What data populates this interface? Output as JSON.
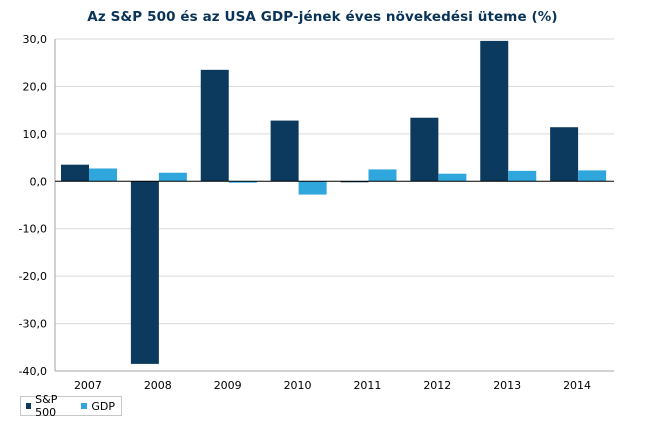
{
  "chart_data": {
    "type": "bar",
    "title": "Az S&P 500 és az USA GDP-jének éves növekedési üteme (%)",
    "xlabel": "",
    "ylabel": "",
    "categories": [
      "2007",
      "2008",
      "2009",
      "2010",
      "2011",
      "2012",
      "2013",
      "2014"
    ],
    "series": [
      {
        "name": "S&P 500",
        "color": "#0b3a5e",
        "values": [
          3.5,
          -38.5,
          23.5,
          12.8,
          -0.2,
          13.4,
          29.6,
          11.4
        ]
      },
      {
        "name": "GDP",
        "color": "#2fa6dc",
        "values": [
          2.7,
          1.8,
          -0.3,
          -2.8,
          2.5,
          1.6,
          2.2,
          2.3
        ]
      }
    ],
    "ylim": [
      -40,
      30
    ],
    "yticks": [
      "30,0",
      "20,0",
      "10,0",
      "0,0",
      "-10,0",
      "-20,0",
      "-30,0",
      "-40,0"
    ],
    "grid": true,
    "legend_position": "bottom-left"
  }
}
